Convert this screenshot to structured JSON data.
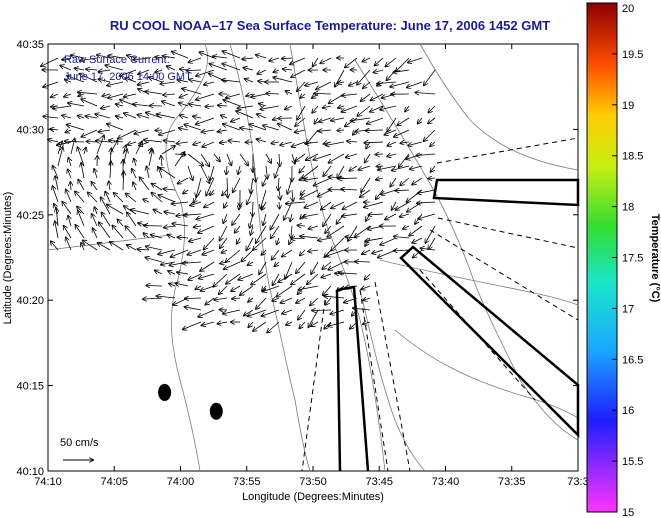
{
  "chart_data": {
    "type": "quiver-map",
    "title": "RU COOL  NOAA–17  Sea Surface Temperature:  June 17, 2006 1452 GMT",
    "xlabel": "Longitude (Degrees:Minutes)",
    "ylabel": "Latitude (Degrees:Minutes)",
    "x_ticks": [
      "74:10",
      "74:05",
      "74:00",
      "73:55",
      "73:50",
      "73:45",
      "73:40",
      "73:35",
      "73:3"
    ],
    "y_ticks": [
      "40:35",
      "40:30",
      "40:25",
      "40:20",
      "40:15",
      "40:10"
    ],
    "xlim_minutes_west_of_74": [
      10,
      -30
    ],
    "ylim_minutes_north_of_40": [
      10,
      35
    ],
    "annotations": [
      "Raw Surface Current:",
      "June 17, 2006 14:00 GMT"
    ],
    "scale_label": "50 cm/s",
    "colorbar": {
      "label": "Temperature (°C)",
      "ticks": [
        "20",
        "19.5",
        "19",
        "18.5",
        "18",
        "17.5",
        "17",
        "16.5",
        "16",
        "15.5",
        "15"
      ],
      "range": [
        15,
        20
      ]
    },
    "markers": [
      {
        "lon_min": 1.2,
        "lat_min": 14.6
      },
      {
        "lon_min": -2.7,
        "lat_min": 13.5
      }
    ]
  }
}
